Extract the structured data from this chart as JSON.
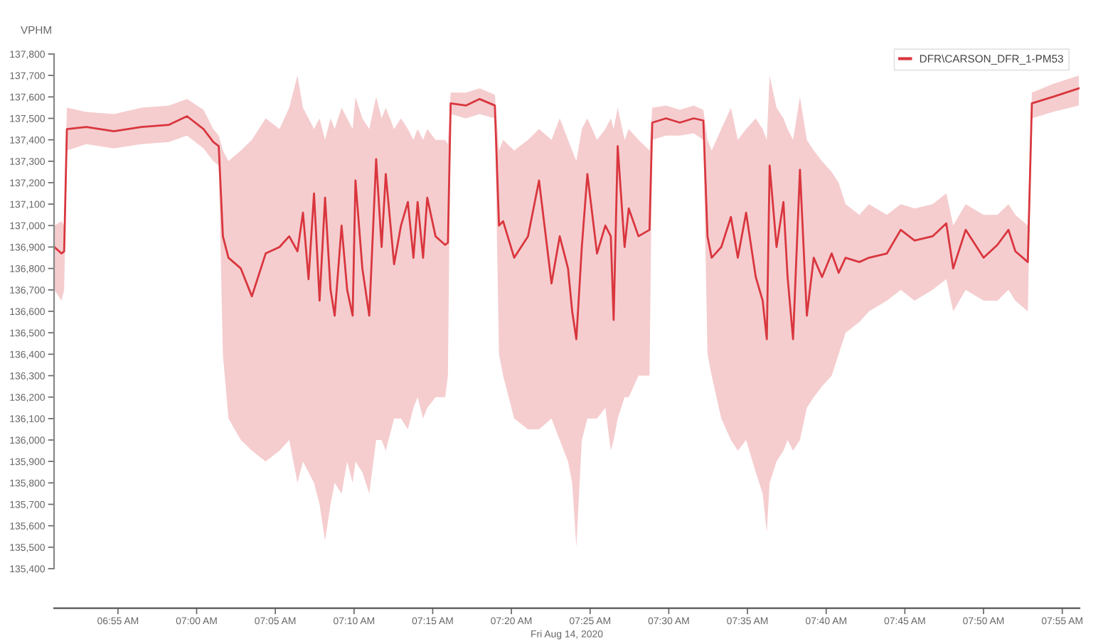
{
  "chart_data": {
    "type": "line",
    "ylabel": "VPHM",
    "xlabel": "Fri Aug 14, 2020",
    "legend": "top right",
    "grid": false,
    "line_style": "solid",
    "xlim": [
      6.849,
      7.935
    ],
    "ylim": [
      135400,
      137800
    ],
    "xticks": [
      {
        "value": 6.9167,
        "label": "06:55 AM"
      },
      {
        "value": 7.0,
        "label": "07:00 AM"
      },
      {
        "value": 7.0833,
        "label": "07:05 AM"
      },
      {
        "value": 7.1667,
        "label": "07:10 AM"
      },
      {
        "value": 7.25,
        "label": "07:15 AM"
      },
      {
        "value": 7.3333,
        "label": "07:20 AM"
      },
      {
        "value": 7.4167,
        "label": "07:25 AM"
      },
      {
        "value": 7.5,
        "label": "07:30 AM"
      },
      {
        "value": 7.5833,
        "label": "07:35 AM"
      },
      {
        "value": 7.6667,
        "label": "07:40 AM"
      },
      {
        "value": 7.75,
        "label": "07:45 AM"
      },
      {
        "value": 7.8333,
        "label": "07:50 AM"
      },
      {
        "value": 7.9167,
        "label": "07:55 AM"
      }
    ],
    "yticks": [
      {
        "value": 135400,
        "label": "135,400"
      },
      {
        "value": 135500,
        "label": "135,500"
      },
      {
        "value": 135600,
        "label": "135,600"
      },
      {
        "value": 135700,
        "label": "135,700"
      },
      {
        "value": 135800,
        "label": "135,800"
      },
      {
        "value": 135900,
        "label": "135,900"
      },
      {
        "value": 136000,
        "label": "136,000"
      },
      {
        "value": 136100,
        "label": "136,100"
      },
      {
        "value": 136200,
        "label": "136,200"
      },
      {
        "value": 136300,
        "label": "136,300"
      },
      {
        "value": 136400,
        "label": "136,400"
      },
      {
        "value": 136500,
        "label": "136,500"
      },
      {
        "value": 136600,
        "label": "136,600"
      },
      {
        "value": 136700,
        "label": "136,700"
      },
      {
        "value": 136800,
        "label": "136,800"
      },
      {
        "value": 136900,
        "label": "136,900"
      },
      {
        "value": 137000,
        "label": "137,000"
      },
      {
        "value": 137100,
        "label": "137,100"
      },
      {
        "value": 137200,
        "label": "137,200"
      },
      {
        "value": 137300,
        "label": "137,300"
      },
      {
        "value": 137400,
        "label": "137,400"
      },
      {
        "value": 137500,
        "label": "137,500"
      },
      {
        "value": 137600,
        "label": "137,600"
      },
      {
        "value": 137700,
        "label": "137,700"
      },
      {
        "value": 137800,
        "label": "137,800"
      }
    ],
    "series": [
      {
        "name": "DFR\\CARSON_DFR_1-PM53",
        "color": "#d9363e",
        "x": [
          6.8494,
          6.8568,
          6.8597,
          6.8626,
          6.8831,
          6.9123,
          6.9416,
          6.9708,
          6.9898,
          7.0073,
          7.0176,
          7.0234,
          7.0278,
          7.0337,
          7.0468,
          7.0585,
          7.0731,
          7.0878,
          7.098,
          7.1068,
          7.1126,
          7.1185,
          7.1243,
          7.1302,
          7.136,
          7.1418,
          7.1462,
          7.1535,
          7.1594,
          7.1652,
          7.1682,
          7.1755,
          7.1828,
          7.1901,
          7.1959,
          7.2003,
          7.2091,
          7.2164,
          7.2237,
          7.2296,
          7.234,
          7.2398,
          7.2442,
          7.253,
          7.2632,
          7.2661,
          7.269,
          7.2851,
          7.2997,
          7.3158,
          7.3202,
          7.3246,
          7.3363,
          7.3509,
          7.3626,
          7.3758,
          7.3845,
          7.3933,
          7.3977,
          7.4021,
          7.4079,
          7.4138,
          7.424,
          7.4328,
          7.4386,
          7.4416,
          7.4459,
          7.4532,
          7.4576,
          7.4679,
          7.4796,
          7.4825,
          7.4971,
          7.5117,
          7.5263,
          7.5366,
          7.541,
          7.5454,
          7.5556,
          7.5658,
          7.5731,
          7.5819,
          7.5921,
          7.5994,
          7.6038,
          7.6068,
          7.6141,
          7.6214,
          7.6258,
          7.6316,
          7.6389,
          7.6462,
          7.6535,
          7.6623,
          7.6725,
          7.6799,
          7.6872,
          7.7018,
          7.712,
          7.731,
          7.7456,
          7.7603,
          7.7793,
          7.7939,
          7.8012,
          7.8144,
          7.8334,
          7.848,
          7.8597,
          7.867,
          7.8802,
          7.8845,
          7.9065,
          7.9342
        ],
        "values": [
          136900,
          136870,
          136880,
          137450,
          137460,
          137440,
          137460,
          137470,
          137510,
          137450,
          137390,
          137370,
          136950,
          136850,
          136800,
          136670,
          136870,
          136900,
          136950,
          136880,
          137060,
          136750,
          137150,
          136650,
          137130,
          136700,
          136580,
          137000,
          136700,
          136580,
          137210,
          136800,
          136580,
          137310,
          136900,
          137240,
          136820,
          137000,
          137110,
          136850,
          137110,
          136850,
          137130,
          136950,
          136910,
          136920,
          137570,
          137560,
          137590,
          137560,
          137000,
          137020,
          136850,
          136950,
          137210,
          136730,
          136950,
          136800,
          136600,
          136470,
          136900,
          137240,
          136870,
          137000,
          136950,
          136560,
          137370,
          136900,
          137080,
          136950,
          136980,
          137480,
          137500,
          137480,
          137500,
          137490,
          136950,
          136850,
          136900,
          137040,
          136850,
          137060,
          136760,
          136650,
          136470,
          137280,
          136900,
          137110,
          136760,
          136470,
          137260,
          136580,
          136850,
          136760,
          136870,
          136780,
          136850,
          136830,
          136850,
          136870,
          136980,
          136930,
          136950,
          137010,
          136800,
          136980,
          136850,
          136910,
          136980,
          136880,
          136830,
          137570,
          137600,
          137640
        ],
        "lower": [
          136700,
          136650,
          136700,
          137350,
          137380,
          137360,
          137380,
          137390,
          137420,
          137360,
          137300,
          137280,
          136400,
          136100,
          136000,
          135950,
          135900,
          135950,
          136000,
          135800,
          135900,
          135850,
          135800,
          135700,
          135530,
          135700,
          135800,
          135750,
          135900,
          135800,
          135900,
          135850,
          135750,
          136000,
          136000,
          135950,
          136100,
          136100,
          136050,
          136150,
          136200,
          136100,
          136150,
          136200,
          136200,
          136300,
          137520,
          137500,
          137520,
          137500,
          136400,
          136300,
          136100,
          136050,
          136050,
          136100,
          136000,
          135900,
          135800,
          135500,
          136000,
          136100,
          136100,
          136150,
          135950,
          136000,
          136100,
          136200,
          136200,
          136300,
          136300,
          137400,
          137420,
          137420,
          137430,
          137400,
          136400,
          136300,
          136100,
          136000,
          135950,
          136000,
          135850,
          135750,
          135570,
          135800,
          135900,
          135950,
          136000,
          135950,
          136000,
          136150,
          136200,
          136250,
          136300,
          136400,
          136500,
          136550,
          136600,
          136650,
          136700,
          136650,
          136700,
          136750,
          136600,
          136700,
          136650,
          136650,
          136700,
          136650,
          136600,
          137500,
          137530,
          137560
        ],
        "upper": [
          137000,
          137020,
          137000,
          137550,
          137530,
          137520,
          137550,
          137560,
          137590,
          137540,
          137450,
          137420,
          137350,
          137300,
          137350,
          137400,
          137500,
          137450,
          137550,
          137700,
          137550,
          137500,
          137450,
          137500,
          137400,
          137500,
          137450,
          137550,
          137500,
          137450,
          137600,
          137500,
          137450,
          137600,
          137500,
          137550,
          137450,
          137500,
          137450,
          137400,
          137450,
          137400,
          137450,
          137400,
          137400,
          137380,
          137620,
          137620,
          137640,
          137610,
          137350,
          137400,
          137350,
          137400,
          137450,
          137400,
          137500,
          137400,
          137350,
          137300,
          137450,
          137500,
          137400,
          137450,
          137500,
          137450,
          137550,
          137400,
          137450,
          137400,
          137350,
          137550,
          137560,
          137540,
          137560,
          137540,
          137400,
          137350,
          137450,
          137550,
          137400,
          137450,
          137500,
          137450,
          137400,
          137700,
          137550,
          137500,
          137450,
          137400,
          137600,
          137400,
          137350,
          137300,
          137250,
          137200,
          137100,
          137050,
          137100,
          137050,
          137100,
          137080,
          137100,
          137150,
          137000,
          137100,
          137050,
          137050,
          137100,
          137050,
          137000,
          137620,
          137660,
          137700
        ]
      }
    ]
  }
}
